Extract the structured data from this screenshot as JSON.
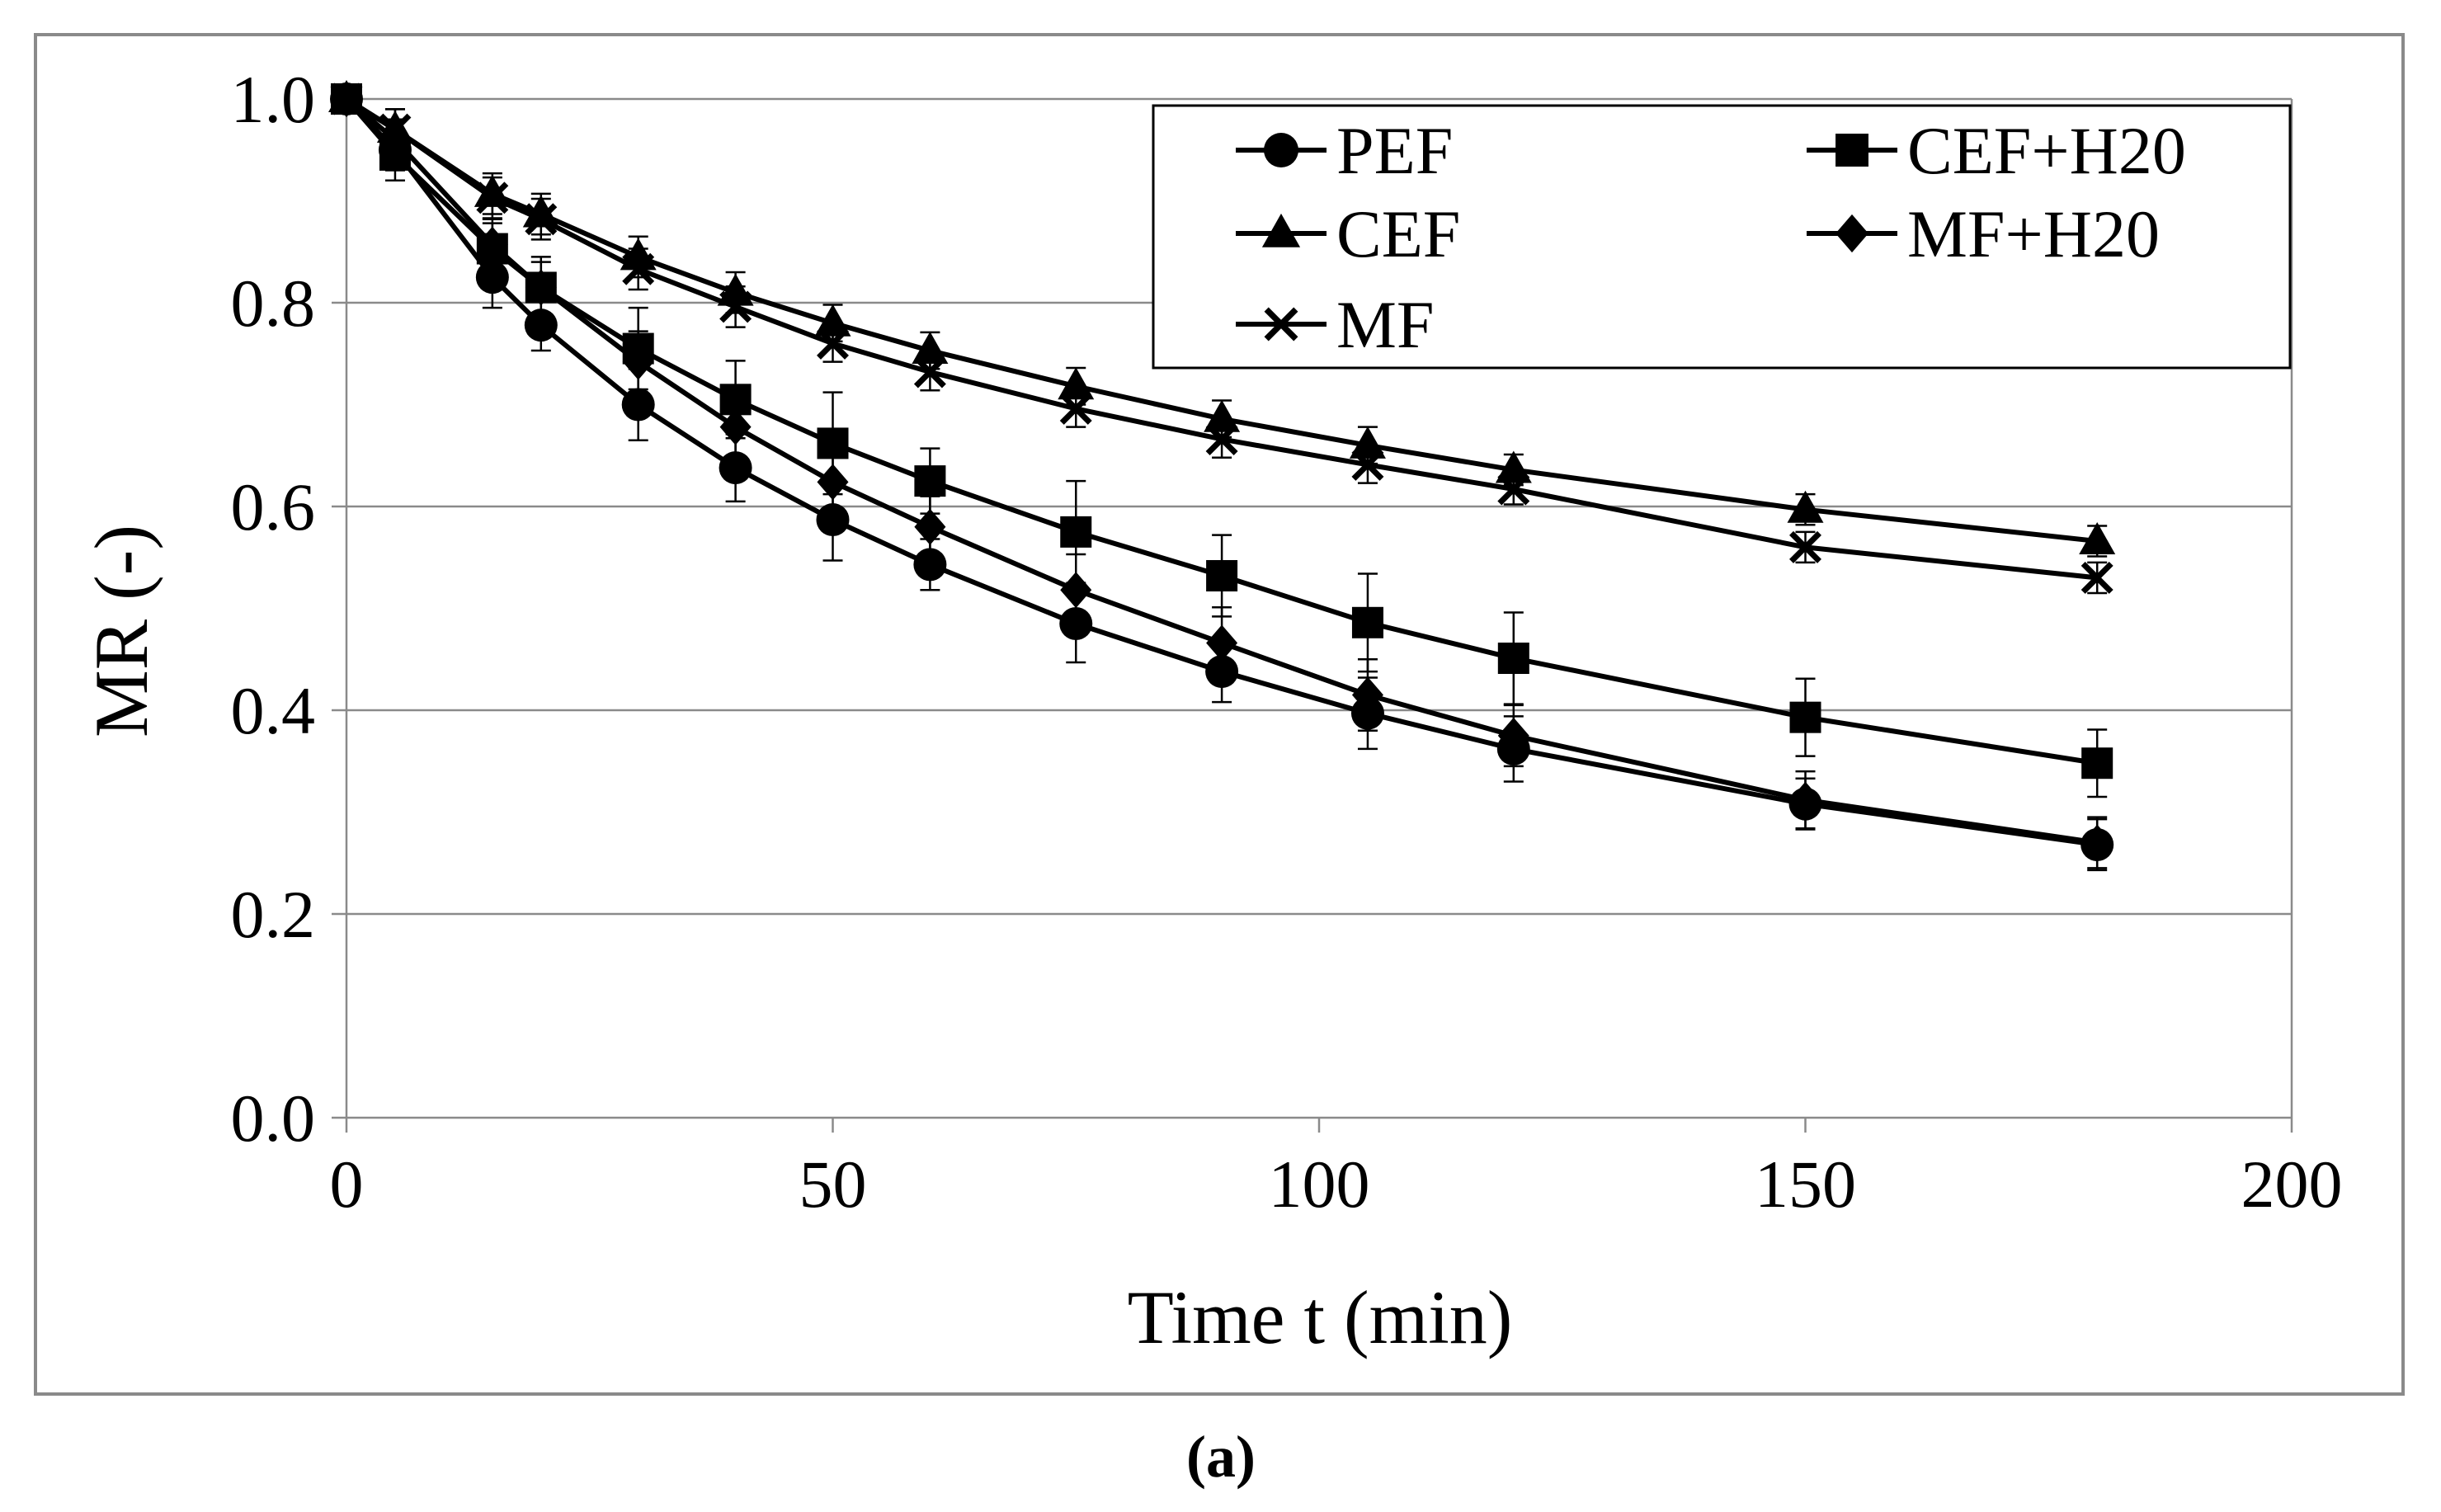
{
  "caption": "(a)",
  "chart_data": {
    "type": "line",
    "xlabel": "Time t (min)",
    "ylabel": "MR (-)",
    "xlim": [
      0,
      200
    ],
    "ylim": [
      0.0,
      1.0
    ],
    "xticks": [
      "0",
      "50",
      "100",
      "150",
      "200"
    ],
    "yticks": [
      "0.0",
      "0.2",
      "0.4",
      "0.6",
      "0.8",
      "1.0"
    ],
    "grid": "horizontal",
    "legend_position": "top-right",
    "x": [
      0,
      5,
      15,
      20,
      30,
      40,
      50,
      60,
      75,
      90,
      105,
      120,
      150,
      180
    ],
    "series": [
      {
        "name": "PEF",
        "marker": "circle",
        "values": [
          1.0,
          0.95,
          0.825,
          0.778,
          0.7,
          0.638,
          0.587,
          0.543,
          0.485,
          0.438,
          0.397,
          0.362,
          0.308,
          0.268
        ],
        "errors": [
          0.0,
          0.02,
          0.03,
          0.025,
          0.035,
          0.033,
          0.04,
          0.025,
          0.038,
          0.03,
          0.035,
          0.032,
          0.025,
          0.025
        ]
      },
      {
        "name": "CEF+H20",
        "marker": "square",
        "values": [
          1.0,
          0.945,
          0.853,
          0.815,
          0.755,
          0.705,
          0.662,
          0.625,
          0.575,
          0.532,
          0.486,
          0.451,
          0.393,
          0.348
        ],
        "errors": [
          0.0,
          0.025,
          0.025,
          0.03,
          0.04,
          0.038,
          0.05,
          0.032,
          0.05,
          0.04,
          0.048,
          0.045,
          0.038,
          0.033
        ]
      },
      {
        "name": "CEF",
        "marker": "triangle",
        "values": [
          1.0,
          0.97,
          0.907,
          0.887,
          0.845,
          0.81,
          0.78,
          0.753,
          0.718,
          0.686,
          0.66,
          0.636,
          0.597,
          0.566
        ],
        "errors": [
          0.0,
          0.02,
          0.02,
          0.02,
          0.02,
          0.02,
          0.018,
          0.018,
          0.018,
          0.018,
          0.018,
          0.015,
          0.015,
          0.015
        ]
      },
      {
        "name": "MF+H20",
        "marker": "diamond",
        "values": [
          1.0,
          0.96,
          0.857,
          0.815,
          0.742,
          0.678,
          0.624,
          0.58,
          0.518,
          0.466,
          0.415,
          0.375,
          0.312,
          0.27
        ],
        "errors": [
          0.0,
          0.02,
          0.025,
          0.025,
          0.03,
          0.03,
          0.035,
          0.03,
          0.035,
          0.035,
          0.035,
          0.03,
          0.028,
          0.025
        ]
      },
      {
        "name": "MF",
        "marker": "x",
        "values": [
          1.0,
          0.97,
          0.903,
          0.882,
          0.833,
          0.796,
          0.76,
          0.732,
          0.696,
          0.666,
          0.641,
          0.617,
          0.56,
          0.53
        ],
        "errors": [
          0.0,
          0.02,
          0.02,
          0.02,
          0.02,
          0.02,
          0.018,
          0.018,
          0.018,
          0.018,
          0.018,
          0.015,
          0.015,
          0.015
        ]
      }
    ]
  }
}
